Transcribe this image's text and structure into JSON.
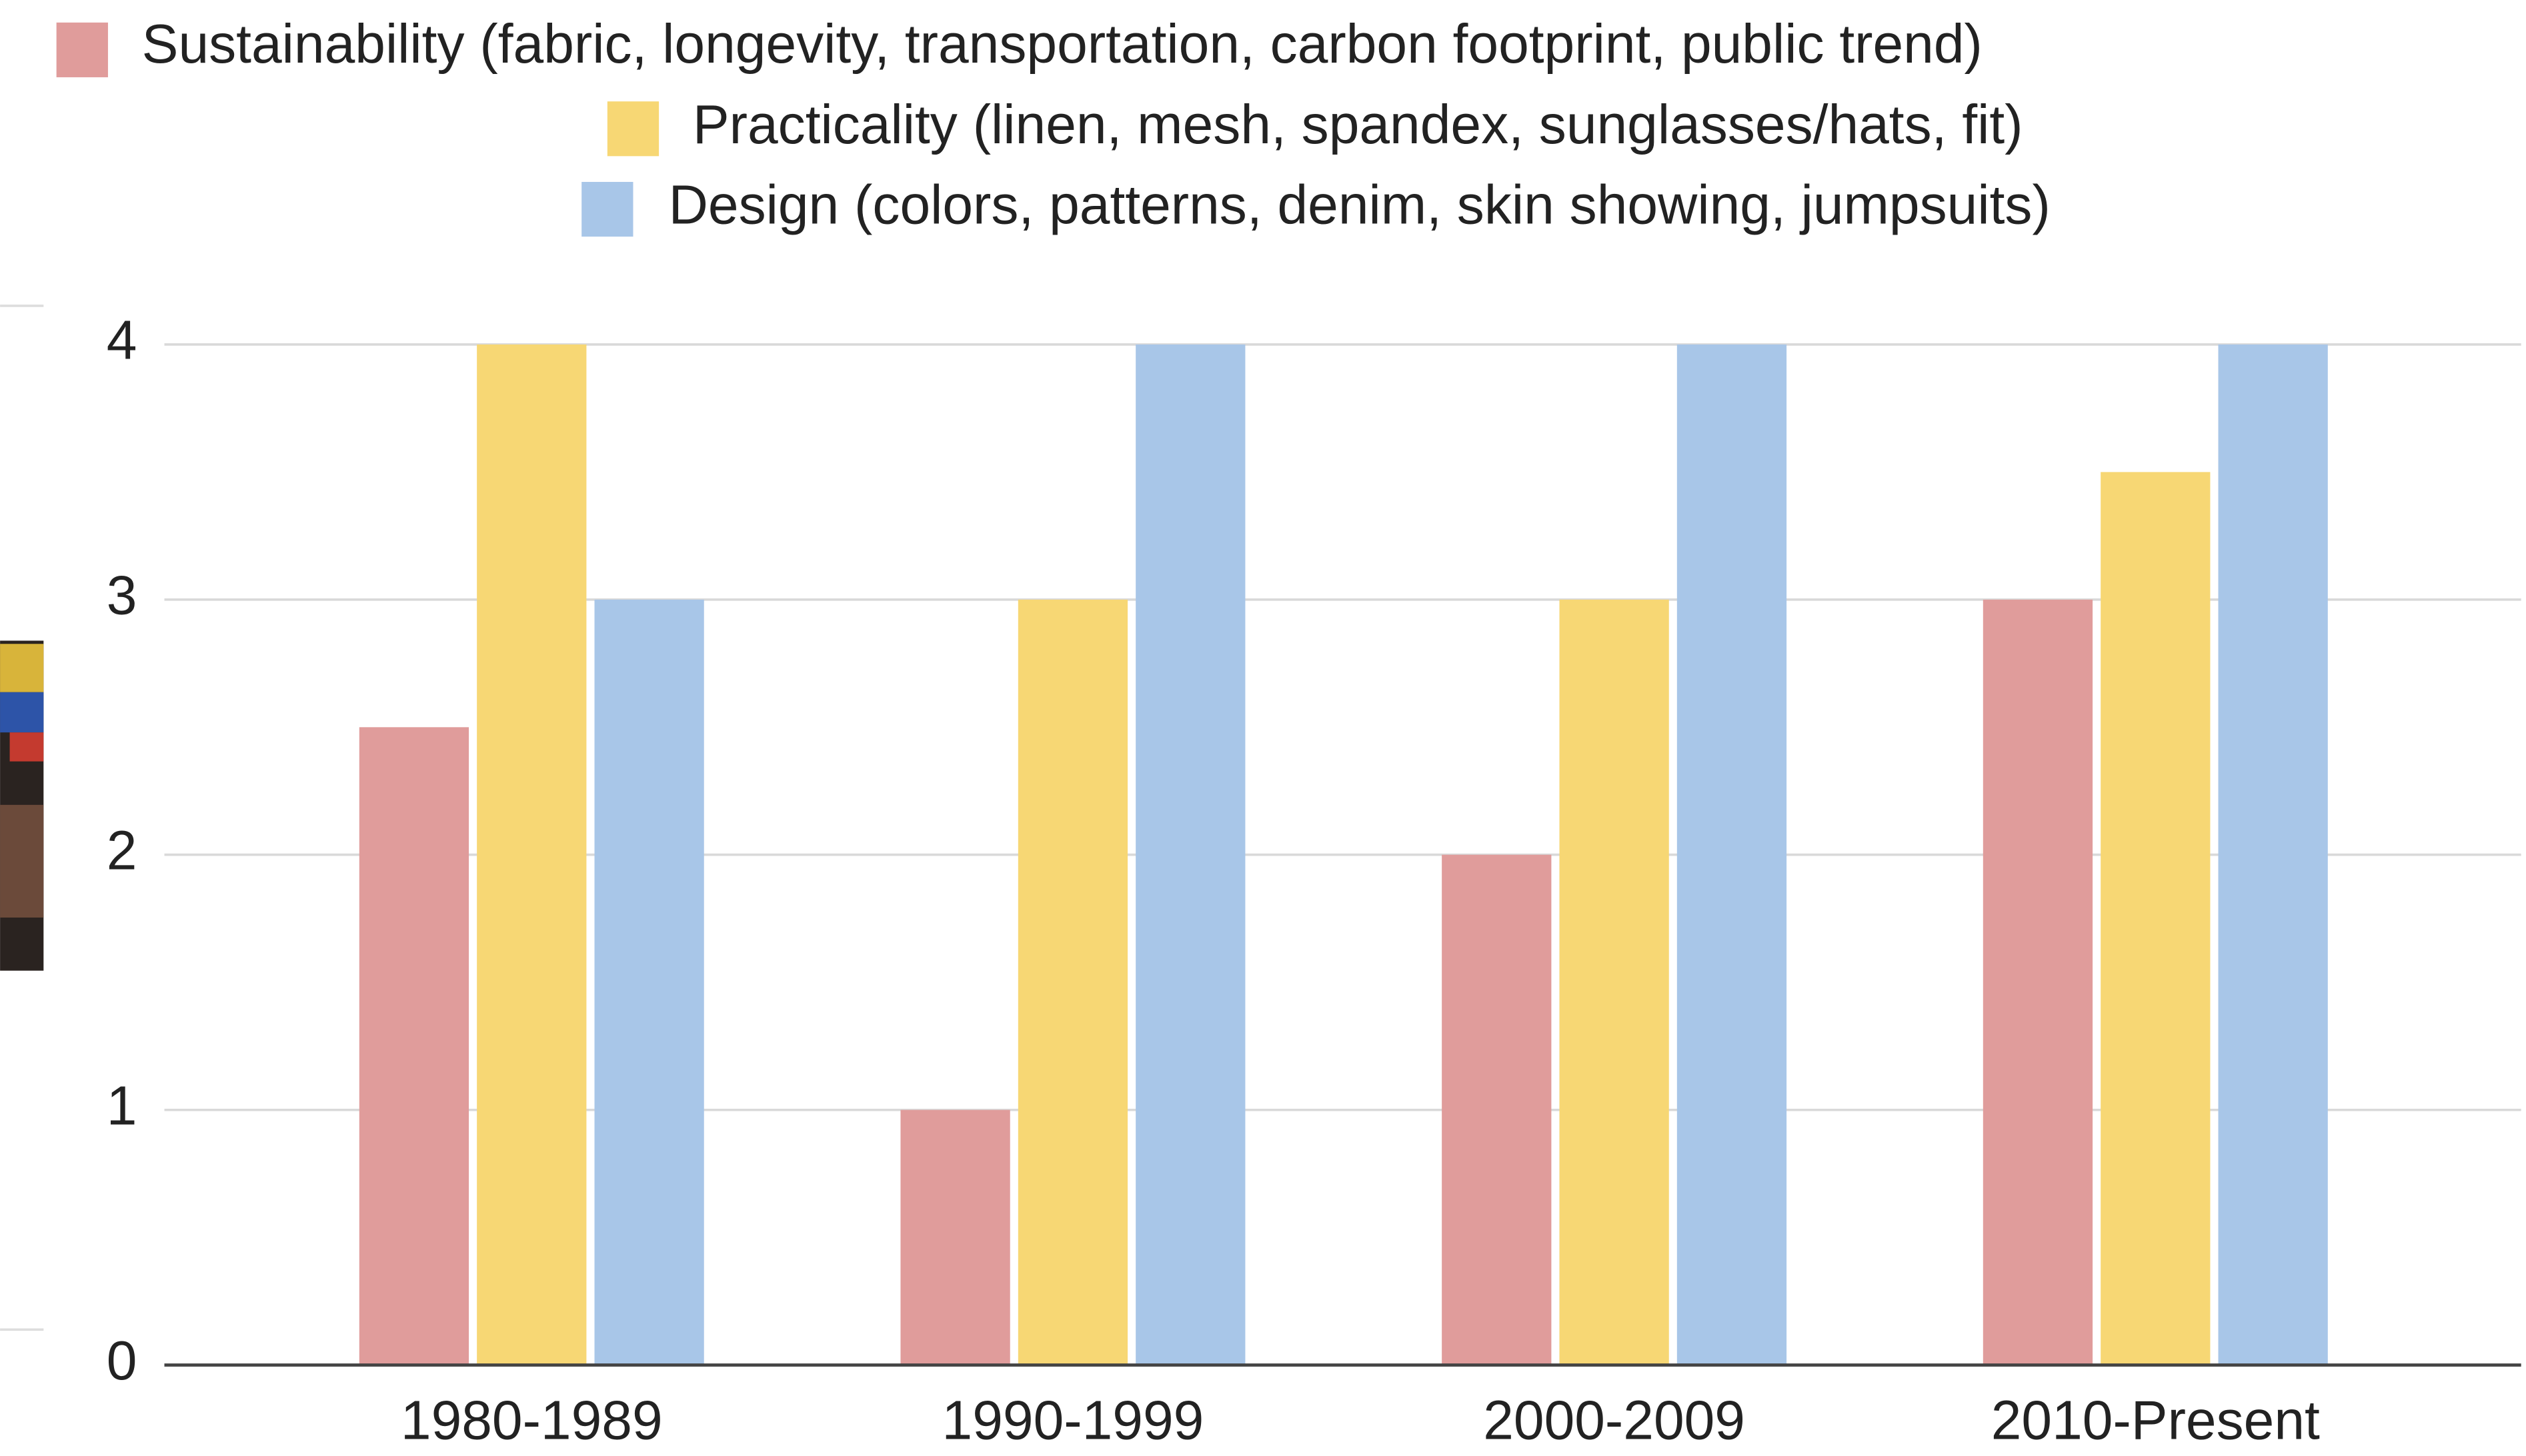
{
  "chart_data": {
    "type": "bar",
    "categories": [
      "1980-1989",
      "1990-1999",
      "2000-2009",
      "2010-Present"
    ],
    "series": [
      {
        "name": "Sustainability (fabric, longevity, transportation, carbon footprint, public trend)",
        "color": "#e09c9b",
        "values": [
          2.5,
          1,
          2,
          3
        ]
      },
      {
        "name": "Practicality (linen, mesh, spandex, sunglasses/hats, fit)",
        "color": "#f7d774",
        "values": [
          4,
          3,
          3,
          3.5
        ]
      },
      {
        "name": "Design (colors, patterns, denim, skin showing, jumpsuits)",
        "color": "#a8c6e8",
        "values": [
          3,
          4,
          4,
          4
        ]
      }
    ],
    "ylim": [
      0,
      4
    ],
    "yticks": [
      0,
      1,
      2,
      3,
      4
    ],
    "grid": true,
    "legend": "top"
  }
}
